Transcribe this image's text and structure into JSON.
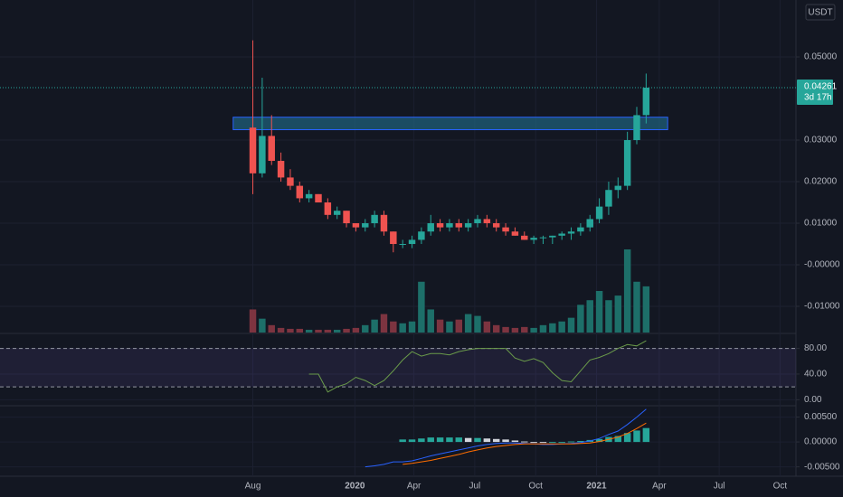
{
  "chart_data": {
    "type": "candlestick",
    "currency": "USDT",
    "colors": {
      "up": "#26a69a",
      "down": "#ef5350",
      "up_volume": "#1d6f69",
      "down_volume": "#7d3440",
      "zone": "#1f5f7a",
      "rsi": "#6a9b4a",
      "macd": "#2962ff",
      "signal": "#ff6d00"
    },
    "xlim": [
      -27,
      58
    ],
    "xticks": [
      {
        "value": 0,
        "label": "Aug"
      },
      {
        "value": 10.9,
        "label": "2020"
      },
      {
        "value": 17.2,
        "label": "Apr"
      },
      {
        "value": 23.7,
        "label": "Jul"
      },
      {
        "value": 30.2,
        "label": "Oct"
      },
      {
        "value": 36.7,
        "label": "2021"
      },
      {
        "value": 43.4,
        "label": "Apr"
      },
      {
        "value": 49.8,
        "label": "Jul"
      },
      {
        "value": 56.3,
        "label": "Oct"
      }
    ],
    "ylim": [
      -0.0163,
      0.0637
    ],
    "yticks": [
      {
        "value": 0.05,
        "label": "0.05000"
      },
      {
        "value": 0.03,
        "label": "0.03000"
      },
      {
        "value": 0.02,
        "label": "0.02000"
      },
      {
        "value": 0.01,
        "label": "0.01000"
      },
      {
        "value": 0,
        "label": "-0.00000"
      },
      {
        "value": -0.01,
        "label": "-0.01000"
      }
    ],
    "last_price": {
      "value": 0.04261,
      "label": "0.04261"
    },
    "countdown": "3d 17h",
    "zone": {
      "x": [
        -2.1,
        44.3
      ],
      "y": [
        0.0325,
        0.0355
      ]
    },
    "ohlc": [
      [
        0.033,
        0.054,
        0.017,
        0.022
      ],
      [
        0.022,
        0.045,
        0.021,
        0.031
      ],
      [
        0.031,
        0.036,
        0.024,
        0.025
      ],
      [
        0.025,
        0.027,
        0.02,
        0.021
      ],
      [
        0.021,
        0.023,
        0.018,
        0.019
      ],
      [
        0.019,
        0.02,
        0.015,
        0.016
      ],
      [
        0.016,
        0.018,
        0.015,
        0.017
      ],
      [
        0.017,
        0.017,
        0.015,
        0.015
      ],
      [
        0.015,
        0.016,
        0.011,
        0.012
      ],
      [
        0.012,
        0.014,
        0.011,
        0.013
      ],
      [
        0.013,
        0.013,
        0.009,
        0.01
      ],
      [
        0.01,
        0.01,
        0.008,
        0.009
      ],
      [
        0.009,
        0.011,
        0.008,
        0.01
      ],
      [
        0.01,
        0.013,
        0.009,
        0.012
      ],
      [
        0.012,
        0.013,
        0.007,
        0.008
      ],
      [
        0.008,
        0.008,
        0.003,
        0.005
      ],
      [
        0.005,
        0.006,
        0.004,
        0.005
      ],
      [
        0.005,
        0.007,
        0.004,
        0.006
      ],
      [
        0.006,
        0.009,
        0.005,
        0.008
      ],
      [
        0.008,
        0.012,
        0.007,
        0.01
      ],
      [
        0.01,
        0.011,
        0.008,
        0.009
      ],
      [
        0.009,
        0.011,
        0.008,
        0.01
      ],
      [
        0.01,
        0.011,
        0.008,
        0.009
      ],
      [
        0.009,
        0.011,
        0.008,
        0.01
      ],
      [
        0.01,
        0.012,
        0.009,
        0.011
      ],
      [
        0.011,
        0.012,
        0.009,
        0.01
      ],
      [
        0.01,
        0.011,
        0.008,
        0.009
      ],
      [
        0.009,
        0.01,
        0.007,
        0.008
      ],
      [
        0.008,
        0.009,
        0.007,
        0.007
      ],
      [
        0.007,
        0.008,
        0.006,
        0.006
      ],
      [
        0.006,
        0.007,
        0.005,
        0.0065
      ],
      [
        0.0065,
        0.007,
        0.005,
        0.0066
      ],
      [
        0.0066,
        0.007,
        0.005,
        0.007
      ],
      [
        0.007,
        0.008,
        0.006,
        0.0075
      ],
      [
        0.0075,
        0.009,
        0.006,
        0.008
      ],
      [
        0.008,
        0.01,
        0.007,
        0.009
      ],
      [
        0.009,
        0.012,
        0.008,
        0.011
      ],
      [
        0.011,
        0.016,
        0.01,
        0.014
      ],
      [
        0.014,
        0.02,
        0.012,
        0.018
      ],
      [
        0.018,
        0.021,
        0.016,
        0.019
      ],
      [
        0.019,
        0.032,
        0.018,
        0.03
      ],
      [
        0.03,
        0.038,
        0.029,
        0.036
      ],
      [
        0.036,
        0.046,
        0.034,
        0.04261
      ]
    ],
    "volume": [
      25,
      15,
      8,
      5,
      4,
      4,
      3,
      3,
      3,
      3,
      4,
      5,
      8,
      14,
      20,
      12,
      10,
      12,
      55,
      25,
      14,
      12,
      14,
      20,
      18,
      12,
      8,
      6,
      5,
      6,
      5,
      8,
      10,
      12,
      16,
      30,
      35,
      45,
      35,
      40,
      90,
      55,
      50
    ],
    "rsi": {
      "ylim": [
        -8,
        102
      ],
      "yticks": [
        {
          "value": 80,
          "label": "80.00"
        },
        {
          "value": 40,
          "label": "40.00"
        },
        {
          "value": 0,
          "label": "0.00"
        }
      ],
      "bands": [
        20,
        80
      ],
      "values": [
        null,
        null,
        null,
        null,
        null,
        null,
        40,
        40,
        12,
        20,
        25,
        35,
        30,
        22,
        30,
        45,
        62,
        75,
        68,
        72,
        72,
        70,
        75,
        78,
        80,
        80,
        80,
        80,
        65,
        60,
        64,
        58,
        42,
        30,
        28,
        45,
        62,
        66,
        72,
        80,
        86,
        84,
        92
      ]
    },
    "macd": {
      "ylim": [
        -0.0067,
        0.0071
      ],
      "yticks": [
        {
          "value": 0.005,
          "label": "0.00500"
        },
        {
          "value": 0,
          "label": "0.00000"
        },
        {
          "value": -0.005,
          "label": "-0.00500"
        }
      ],
      "macd": [
        null,
        null,
        null,
        null,
        null,
        null,
        null,
        null,
        null,
        null,
        null,
        null,
        -0.005,
        -0.0048,
        -0.0045,
        -0.004,
        -0.004,
        -0.0038,
        -0.0033,
        -0.0028,
        -0.0024,
        -0.002,
        -0.0016,
        -0.0012,
        -0.0008,
        -0.0005,
        -0.0003,
        -0.0002,
        -0.0002,
        -0.0003,
        -0.0004,
        -0.0005,
        -0.0005,
        -0.0004,
        -0.0003,
        -0.0001,
        0.0002,
        0.0007,
        0.0015,
        0.0022,
        0.0035,
        0.005,
        0.0066
      ],
      "signal": [
        null,
        null,
        null,
        null,
        null,
        null,
        null,
        null,
        null,
        null,
        null,
        null,
        null,
        null,
        null,
        null,
        -0.0045,
        -0.0043,
        -0.004,
        -0.0037,
        -0.0033,
        -0.0029,
        -0.0025,
        -0.002,
        -0.0016,
        -0.0012,
        -0.0009,
        -0.0007,
        -0.0005,
        -0.0004,
        -0.0004,
        -0.0004,
        -0.0004,
        -0.0004,
        -0.0004,
        -0.0003,
        -0.0002,
        0.0001,
        0.0005,
        0.001,
        0.0017,
        0.0027,
        0.0038
      ],
      "histogram": [
        null,
        null,
        null,
        null,
        null,
        null,
        null,
        null,
        null,
        null,
        null,
        null,
        null,
        null,
        null,
        null,
        0.0005,
        0.0005,
        0.0007,
        0.0009,
        0.0009,
        0.0009,
        0.0009,
        0.0008,
        0.0008,
        0.0007,
        0.0006,
        0.0005,
        0.0003,
        0.0001,
        0,
        -0.0001,
        -0.0001,
        0,
        0.0001,
        0.0002,
        0.0004,
        0.0006,
        0.001,
        0.0012,
        0.0018,
        0.0023,
        0.0028
      ]
    }
  }
}
